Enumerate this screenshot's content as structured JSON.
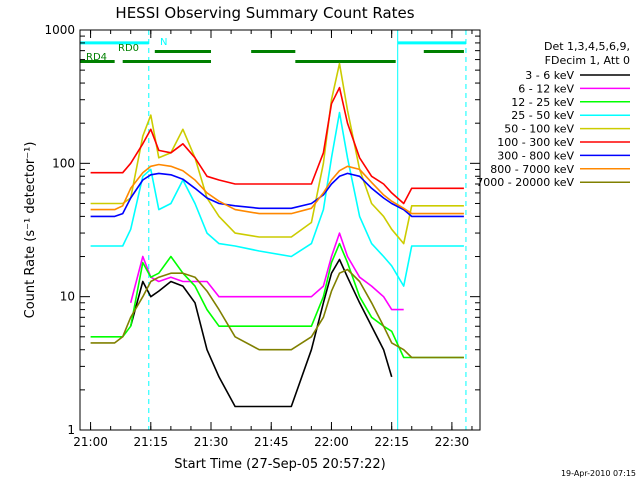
{
  "chart_data": {
    "type": "line",
    "title": "HESSI Observing Summary Count Rates",
    "xlabel": "Start Time (27-Sep-05 20:57:22)",
    "ylabel": "Count Rate (s⁻¹ detector⁻¹)",
    "y_scale": "log",
    "ylim": [
      1,
      1000
    ],
    "xlim": [
      "20:57:22",
      "22:37:00"
    ],
    "x_ticks": [
      "21:00",
      "21:15",
      "21:30",
      "21:45",
      "22:00",
      "22:15",
      "22:30"
    ],
    "y_ticks": [
      "1",
      "10",
      "100",
      "1000"
    ],
    "grid": false,
    "legend_placement": "right",
    "legend_header": [
      "Det 1,3,4,5,6,9,",
      "FDecim 1, Att 0"
    ],
    "footer": "19-Apr-2010 07:15",
    "series": [
      {
        "name": "3 - 6 keV",
        "color": "#000000",
        "x": [
          "21:00",
          "21:06",
          "21:08",
          "21:10",
          "21:13",
          "21:15",
          "21:17",
          "21:20",
          "21:23",
          "21:26",
          "21:29",
          "21:32",
          "21:36",
          "21:42",
          "21:50",
          "21:55",
          "21:58",
          "22:00",
          "22:02",
          "22:04",
          "22:07",
          "22:10",
          "22:13",
          "22:15",
          "22:18",
          "22:20",
          "22:25",
          "22:30",
          "22:33"
        ],
        "y": [
          null,
          null,
          null,
          6,
          13,
          10,
          11,
          13,
          12,
          9,
          4,
          2.5,
          1.5,
          1.5,
          1.5,
          4,
          9,
          15,
          19,
          14,
          9,
          6,
          4,
          2.5,
          null,
          null,
          null,
          null,
          null
        ]
      },
      {
        "name": "6 - 12 keV",
        "color": "#ff00ff",
        "x": [
          "21:00",
          "21:06",
          "21:08",
          "21:10",
          "21:13",
          "21:15",
          "21:17",
          "21:20",
          "21:23",
          "21:26",
          "21:29",
          "21:32",
          "21:36",
          "21:42",
          "21:50",
          "21:55",
          "21:58",
          "22:00",
          "22:02",
          "22:04",
          "22:07",
          "22:10",
          "22:13",
          "22:15",
          "22:18",
          "22:20",
          "22:25",
          "22:30",
          "22:33"
        ],
        "y": [
          null,
          null,
          null,
          9,
          20,
          14,
          13,
          14,
          13,
          13,
          13,
          10,
          10,
          10,
          10,
          10,
          12,
          20,
          30,
          20,
          14,
          12,
          10,
          8,
          8,
          null,
          null,
          null,
          null
        ]
      },
      {
        "name": "12 - 25 keV",
        "color": "#00ff00",
        "x": [
          "21:00",
          "21:06",
          "21:08",
          "21:10",
          "21:13",
          "21:15",
          "21:17",
          "21:20",
          "21:23",
          "21:26",
          "21:29",
          "21:32",
          "21:36",
          "21:42",
          "21:50",
          "21:55",
          "21:58",
          "22:00",
          "22:02",
          "22:04",
          "22:07",
          "22:10",
          "22:13",
          "22:15",
          "22:18",
          "22:20",
          "22:25",
          "22:30",
          "22:33"
        ],
        "y": [
          5,
          5,
          5,
          6,
          18,
          14,
          15,
          20,
          15,
          12,
          8,
          6,
          6,
          6,
          6,
          6,
          10,
          18,
          25,
          18,
          10,
          7,
          6,
          5.5,
          3.5,
          3.5,
          3.5,
          3.5,
          3.5
        ]
      },
      {
        "name": "25 - 50 keV",
        "color": "#00ffff",
        "x": [
          "21:00",
          "21:06",
          "21:08",
          "21:10",
          "21:13",
          "21:15",
          "21:17",
          "21:20",
          "21:23",
          "21:26",
          "21:29",
          "21:32",
          "21:36",
          "21:42",
          "21:50",
          "21:55",
          "21:58",
          "22:00",
          "22:02",
          "22:04",
          "22:07",
          "22:10",
          "22:13",
          "22:15",
          "22:18",
          "22:20",
          "22:25",
          "22:30",
          "22:33"
        ],
        "y": [
          24,
          24,
          24,
          32,
          80,
          90,
          45,
          50,
          75,
          50,
          30,
          25,
          24,
          22,
          20,
          25,
          45,
          110,
          240,
          110,
          40,
          25,
          20,
          17,
          12,
          24,
          24,
          24,
          24
        ]
      },
      {
        "name": "50 - 100 keV",
        "color": "#cccc00",
        "x": [
          "21:00",
          "21:06",
          "21:08",
          "21:10",
          "21:13",
          "21:15",
          "21:17",
          "21:20",
          "21:23",
          "21:26",
          "21:29",
          "21:32",
          "21:36",
          "21:42",
          "21:50",
          "21:55",
          "21:58",
          "22:00",
          "22:02",
          "22:04",
          "22:07",
          "22:10",
          "22:13",
          "22:15",
          "22:18",
          "22:20",
          "22:25",
          "22:30",
          "22:33"
        ],
        "y": [
          50,
          50,
          50,
          55,
          160,
          230,
          110,
          120,
          180,
          110,
          55,
          40,
          30,
          28,
          28,
          36,
          100,
          300,
          560,
          250,
          90,
          50,
          40,
          32,
          25,
          48,
          48,
          48,
          48
        ]
      },
      {
        "name": "100 - 300 keV",
        "color": "#ff0000",
        "x": [
          "21:00",
          "21:06",
          "21:08",
          "21:10",
          "21:13",
          "21:15",
          "21:17",
          "21:20",
          "21:23",
          "21:26",
          "21:29",
          "21:32",
          "21:36",
          "21:42",
          "21:50",
          "21:55",
          "21:58",
          "22:00",
          "22:02",
          "22:04",
          "22:07",
          "22:10",
          "22:13",
          "22:15",
          "22:18",
          "22:20",
          "22:25",
          "22:30",
          "22:33"
        ],
        "y": [
          85,
          85,
          85,
          100,
          140,
          180,
          125,
          120,
          140,
          110,
          80,
          75,
          70,
          70,
          70,
          70,
          120,
          280,
          370,
          200,
          110,
          80,
          70,
          60,
          50,
          65,
          65,
          65,
          65
        ]
      },
      {
        "name": "300 - 800 keV",
        "color": "#0000ff",
        "x": [
          "21:00",
          "21:06",
          "21:08",
          "21:10",
          "21:13",
          "21:15",
          "21:17",
          "21:20",
          "21:23",
          "21:26",
          "21:29",
          "21:32",
          "21:36",
          "21:42",
          "21:50",
          "21:55",
          "21:58",
          "22:00",
          "22:02",
          "22:04",
          "22:07",
          "22:10",
          "22:13",
          "22:15",
          "22:18",
          "22:20",
          "22:25",
          "22:30",
          "22:33"
        ],
        "y": [
          40,
          40,
          42,
          55,
          75,
          82,
          84,
          82,
          76,
          65,
          55,
          50,
          48,
          46,
          46,
          50,
          58,
          70,
          80,
          84,
          80,
          65,
          55,
          50,
          45,
          40,
          40,
          40,
          40
        ]
      },
      {
        "name": "800 - 7000 keV",
        "color": "#ff8800",
        "x": [
          "21:00",
          "21:06",
          "21:08",
          "21:10",
          "21:13",
          "21:15",
          "21:17",
          "21:20",
          "21:23",
          "21:26",
          "21:29",
          "21:32",
          "21:36",
          "21:42",
          "21:50",
          "21:55",
          "21:58",
          "22:00",
          "22:02",
          "22:04",
          "22:07",
          "22:10",
          "22:13",
          "22:15",
          "22:18",
          "22:20",
          "22:25",
          "22:30",
          "22:33"
        ],
        "y": [
          45,
          45,
          48,
          65,
          85,
          95,
          98,
          95,
          88,
          75,
          60,
          52,
          45,
          42,
          42,
          46,
          60,
          75,
          88,
          95,
          90,
          72,
          58,
          52,
          46,
          42,
          42,
          42,
          42
        ]
      },
      {
        "name": "7000 - 20000 keV",
        "color": "#808000",
        "x": [
          "21:00",
          "21:06",
          "21:08",
          "21:10",
          "21:13",
          "21:15",
          "21:17",
          "21:20",
          "21:23",
          "21:26",
          "21:29",
          "21:32",
          "21:36",
          "21:42",
          "21:50",
          "21:55",
          "21:58",
          "22:00",
          "22:02",
          "22:04",
          "22:07",
          "22:10",
          "22:13",
          "22:15",
          "22:18",
          "22:20",
          "22:25",
          "22:30",
          "22:33"
        ],
        "y": [
          4.5,
          4.5,
          5,
          7,
          10,
          13,
          14,
          15,
          15,
          14,
          11,
          8,
          5,
          4,
          4,
          5,
          7,
          11,
          15,
          16,
          13,
          9,
          6,
          4.5,
          4,
          3.5,
          3.5,
          3.5,
          3.5
        ]
      }
    ],
    "annotations": [
      {
        "label": "N",
        "color": "#00ffff",
        "segments": [
          [
            "20:57:22",
            "21:14:30"
          ],
          [
            "22:16:30",
            "22:33:30"
          ]
        ],
        "level": 800
      },
      {
        "label": "RD0",
        "color": "#008000",
        "segments": [
          [
            "21:16",
            "21:30"
          ],
          [
            "21:40",
            "21:51"
          ],
          [
            "22:23",
            "22:33"
          ]
        ],
        "level": 690
      },
      {
        "label": "RD4",
        "color": "#008000",
        "segments": [
          [
            "20:57:22",
            "21:06"
          ],
          [
            "21:08",
            "21:30"
          ],
          [
            "21:51",
            "22:16"
          ]
        ],
        "level": 580
      }
    ],
    "vertical_markers": [
      {
        "time": "21:14:30",
        "color": "#00ffff",
        "style": "dashed"
      },
      {
        "time": "22:16:30",
        "color": "#00ffff",
        "style": "solid"
      },
      {
        "time": "22:33:30",
        "color": "#00ffff",
        "style": "dashed"
      }
    ]
  }
}
